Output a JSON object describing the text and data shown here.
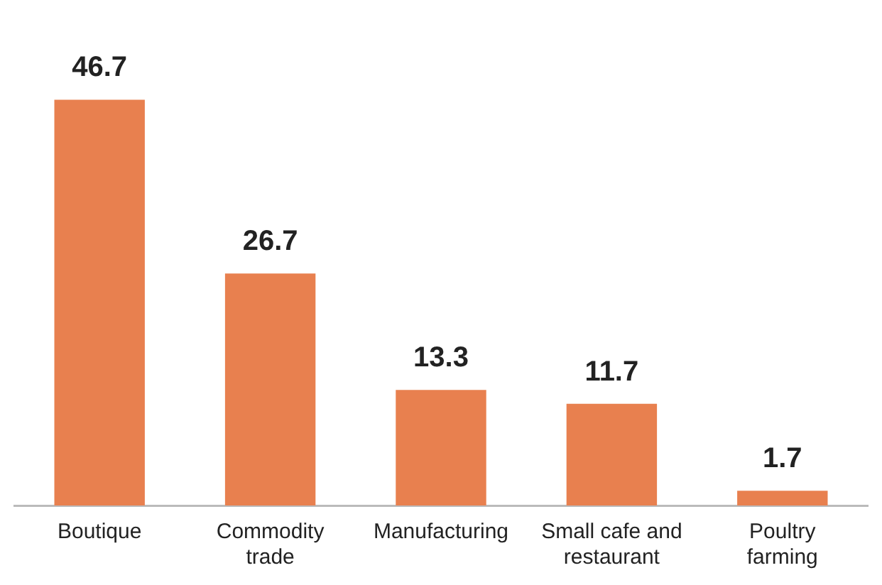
{
  "chart_data": {
    "type": "bar",
    "categories": [
      "Boutique",
      "Commodity trade",
      "Manufacturing",
      "Small cafe and restaurant",
      "Poultry farming"
    ],
    "values": [
      46.7,
      26.7,
      13.3,
      11.7,
      1.7
    ],
    "color": "#e8804f",
    "data_labels": true,
    "grid": false,
    "legend": false,
    "tick_labels": "x"
  }
}
